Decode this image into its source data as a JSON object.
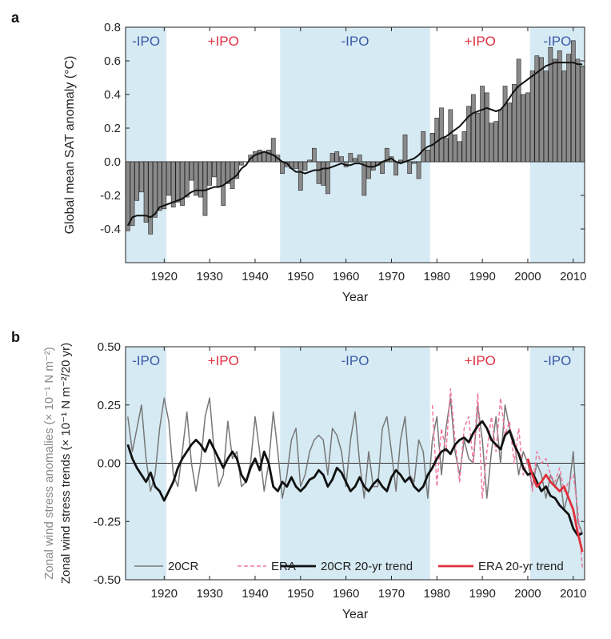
{
  "colors": {
    "neg_ipo_shade": "#d6eaf3",
    "neg_ipo_text": "#3a5aa8",
    "pos_ipo_text": "#e03040",
    "bar_fill": "#8a8a8a",
    "bar_edge": "#222222",
    "smooth_line": "#111111",
    "cr20_line": "#777777",
    "era_line": "#f07aa0",
    "cr20_trend": "#111111",
    "era_trend": "#e0303a"
  },
  "chart_data": [
    {
      "type": "bar",
      "panel_label": "a",
      "xlabel": "Year",
      "ylabel": "Global mean SAT anomaly (°C)",
      "xlim": [
        1911.5,
        2012.5
      ],
      "ylim": [
        -0.6,
        0.8
      ],
      "x_ticks": [
        1920,
        1930,
        1940,
        1950,
        1960,
        1970,
        1980,
        1990,
        2000,
        2010
      ],
      "y_ticks": [
        -0.4,
        -0.2,
        0.0,
        0.2,
        0.4,
        0.6,
        0.8
      ],
      "y_tick_labels": [
        "-0.4",
        "-0.2",
        "0.0",
        "0.2",
        "0.4",
        "0.6",
        "0.8"
      ],
      "ipo_phases": [
        {
          "label": "-IPO",
          "start": 1911.5,
          "end": 1920.5,
          "sign": "neg"
        },
        {
          "label": "+IPO",
          "start": 1920.5,
          "end": 1945.5,
          "sign": "pos"
        },
        {
          "label": "-IPO",
          "start": 1945.5,
          "end": 1978.5,
          "sign": "neg"
        },
        {
          "label": "+IPO",
          "start": 1978.5,
          "end": 2000.5,
          "sign": "pos"
        },
        {
          "label": "-IPO",
          "start": 2000.5,
          "end": 2012.5,
          "sign": "neg"
        }
      ],
      "years": [
        1912,
        1913,
        1914,
        1915,
        1916,
        1917,
        1918,
        1919,
        1920,
        1921,
        1922,
        1923,
        1924,
        1925,
        1926,
        1927,
        1928,
        1929,
        1930,
        1931,
        1932,
        1933,
        1934,
        1935,
        1936,
        1937,
        1938,
        1939,
        1940,
        1941,
        1942,
        1943,
        1944,
        1945,
        1946,
        1947,
        1948,
        1949,
        1950,
        1951,
        1952,
        1953,
        1954,
        1955,
        1956,
        1957,
        1958,
        1959,
        1960,
        1961,
        1962,
        1963,
        1964,
        1965,
        1966,
        1967,
        1968,
        1969,
        1970,
        1971,
        1972,
        1973,
        1974,
        1975,
        1976,
        1977,
        1978,
        1979,
        1980,
        1981,
        1982,
        1983,
        1984,
        1985,
        1986,
        1987,
        1988,
        1989,
        1990,
        1991,
        1992,
        1993,
        1994,
        1995,
        1996,
        1997,
        1998,
        1999,
        2000,
        2001,
        2002,
        2003,
        2004,
        2005,
        2006,
        2007,
        2008,
        2009,
        2010,
        2011,
        2012
      ],
      "values": [
        -0.41,
        -0.38,
        -0.23,
        -0.18,
        -0.36,
        -0.43,
        -0.33,
        -0.29,
        -0.28,
        -0.2,
        -0.27,
        -0.24,
        -0.26,
        -0.21,
        -0.11,
        -0.2,
        -0.21,
        -0.32,
        -0.14,
        -0.09,
        -0.15,
        -0.26,
        -0.13,
        -0.16,
        -0.1,
        -0.02,
        0.0,
        0.04,
        0.06,
        0.07,
        0.06,
        0.07,
        0.14,
        0.04,
        -0.07,
        -0.03,
        -0.04,
        -0.04,
        -0.17,
        -0.05,
        0.01,
        0.08,
        -0.13,
        -0.14,
        -0.19,
        0.05,
        0.06,
        0.03,
        -0.03,
        0.05,
        0.02,
        0.04,
        -0.2,
        -0.1,
        -0.05,
        -0.02,
        -0.07,
        0.08,
        0.03,
        -0.08,
        0.01,
        0.16,
        -0.07,
        -0.01,
        -0.1,
        0.18,
        0.07,
        0.17,
        0.26,
        0.32,
        0.14,
        0.31,
        0.16,
        0.12,
        0.18,
        0.33,
        0.4,
        0.29,
        0.45,
        0.41,
        0.23,
        0.24,
        0.31,
        0.45,
        0.35,
        0.46,
        0.61,
        0.4,
        0.41,
        0.54,
        0.63,
        0.62,
        0.54,
        0.68,
        0.61,
        0.66,
        0.54,
        0.64,
        0.72,
        0.61,
        0.57
      ],
      "smooth": [
        -0.38,
        -0.33,
        -0.32,
        -0.32,
        -0.32,
        -0.33,
        -0.31,
        -0.27,
        -0.26,
        -0.25,
        -0.24,
        -0.23,
        -0.22,
        -0.2,
        -0.18,
        -0.17,
        -0.17,
        -0.17,
        -0.16,
        -0.15,
        -0.15,
        -0.14,
        -0.12,
        -0.1,
        -0.08,
        -0.04,
        -0.02,
        0.02,
        0.04,
        0.05,
        0.06,
        0.05,
        0.04,
        0.02,
        0.0,
        -0.01,
        -0.04,
        -0.06,
        -0.06,
        -0.07,
        -0.06,
        -0.05,
        -0.05,
        -0.04,
        -0.04,
        -0.03,
        -0.02,
        -0.01,
        -0.02,
        -0.02,
        -0.01,
        -0.01,
        -0.02,
        -0.03,
        -0.03,
        -0.02,
        0.0,
        0.01,
        0.02,
        0.0,
        -0.01,
        0.0,
        0.01,
        0.02,
        0.04,
        0.07,
        0.09,
        0.1,
        0.12,
        0.14,
        0.15,
        0.17,
        0.19,
        0.21,
        0.24,
        0.27,
        0.29,
        0.3,
        0.31,
        0.32,
        0.31,
        0.3,
        0.31,
        0.34,
        0.38,
        0.42,
        0.45,
        0.47,
        0.49,
        0.51,
        0.53,
        0.55,
        0.57,
        0.58,
        0.59,
        0.59,
        0.59,
        0.59,
        0.59,
        0.58,
        0.58
      ]
    },
    {
      "type": "line",
      "panel_label": "b",
      "xlabel": "Year",
      "ylabel_line1": "Zonal wind stress anomalies (× 10⁻¹ N m⁻²)",
      "ylabel_line2": "Zonal wind stress trends (× 10⁻¹ N m⁻²/20 yr)",
      "xlim": [
        1911.5,
        2012.5
      ],
      "ylim": [
        -0.5,
        0.5
      ],
      "x_ticks": [
        1920,
        1930,
        1940,
        1950,
        1960,
        1970,
        1980,
        1990,
        2000,
        2010
      ],
      "y_ticks": [
        -0.5,
        -0.25,
        0.0,
        0.25,
        0.5
      ],
      "y_tick_labels": [
        "-0.50",
        "-0.25",
        "0.00",
        "0.25",
        "0.50"
      ],
      "ipo_phases": [
        {
          "label": "-IPO",
          "start": 1911.5,
          "end": 1920.5,
          "sign": "neg"
        },
        {
          "label": "+IPO",
          "start": 1920.5,
          "end": 1945.5,
          "sign": "pos"
        },
        {
          "label": "-IPO",
          "start": 1945.5,
          "end": 1978.5,
          "sign": "neg"
        },
        {
          "label": "+IPO",
          "start": 1978.5,
          "end": 2000.5,
          "sign": "pos"
        },
        {
          "label": "-IPO",
          "start": 2000.5,
          "end": 2012.5,
          "sign": "neg"
        }
      ],
      "legend": [
        "20CR",
        "ERA",
        "20CR 20-yr trend",
        "ERA 20-yr trend"
      ],
      "legend_position": "bottom",
      "series": [
        {
          "name": "20CR",
          "style": "thin-grey",
          "x": [
            1912,
            1913,
            1914,
            1915,
            1916,
            1917,
            1918,
            1919,
            1920,
            1921,
            1922,
            1923,
            1924,
            1925,
            1926,
            1927,
            1928,
            1929,
            1930,
            1931,
            1932,
            1933,
            1934,
            1935,
            1936,
            1937,
            1938,
            1939,
            1940,
            1941,
            1942,
            1943,
            1944,
            1945,
            1946,
            1947,
            1948,
            1949,
            1950,
            1951,
            1952,
            1953,
            1954,
            1955,
            1956,
            1957,
            1958,
            1959,
            1960,
            1961,
            1962,
            1963,
            1964,
            1965,
            1966,
            1967,
            1968,
            1969,
            1970,
            1971,
            1972,
            1973,
            1974,
            1975,
            1976,
            1977,
            1978,
            1979,
            1980,
            1981,
            1982,
            1983,
            1984,
            1985,
            1986,
            1987,
            1988,
            1989,
            1990,
            1991,
            1992,
            1993,
            1994,
            1995,
            1996,
            1997,
            1998,
            1999,
            2000,
            2001,
            2002,
            2003,
            2004,
            2005,
            2006,
            2007,
            2008,
            2009,
            2010,
            2011,
            2012
          ],
          "y": [
            0.2,
            0.05,
            0.15,
            0.25,
            0.02,
            -0.12,
            -0.05,
            0.15,
            0.28,
            0.18,
            -0.05,
            -0.1,
            0.05,
            0.22,
            0.0,
            -0.12,
            0.0,
            0.2,
            0.28,
            0.05,
            -0.1,
            -0.05,
            0.18,
            0.02,
            0.05,
            -0.1,
            -0.08,
            0.0,
            0.2,
            0.05,
            -0.12,
            0.0,
            0.22,
            0.05,
            -0.15,
            -0.05,
            0.1,
            0.15,
            -0.1,
            -0.05,
            0.05,
            0.1,
            0.12,
            0.1,
            -0.05,
            0.15,
            0.12,
            0.05,
            -0.1,
            0.1,
            0.22,
            0.0,
            -0.15,
            0.05,
            -0.1,
            -0.1,
            0.15,
            0.2,
            0.05,
            -0.12,
            0.1,
            0.2,
            -0.05,
            -0.08,
            0.1,
            0.05,
            -0.15,
            0.1,
            0.2,
            -0.05,
            0.15,
            0.28,
            0.05,
            -0.05,
            0.1,
            0.02,
            0.0,
            0.25,
            0.1,
            -0.15,
            0.05,
            0.2,
            0.0,
            0.25,
            0.15,
            0.1,
            -0.05,
            0.05,
            0.0,
            -0.1,
            0.0,
            -0.05,
            -0.15,
            -0.05,
            -0.1,
            -0.05,
            -0.2,
            -0.12,
            0.05,
            -0.25,
            -0.3
          ]
        },
        {
          "name": "ERA",
          "style": "dashed-pink",
          "x": [
            1979,
            1980,
            1981,
            1982,
            1983,
            1984,
            1985,
            1986,
            1987,
            1988,
            1989,
            1990,
            1991,
            1992,
            1993,
            1994,
            1995,
            1996,
            1997,
            1998,
            1999,
            2000,
            2001,
            2002,
            2003,
            2004,
            2005,
            2006,
            2007,
            2008,
            2009,
            2010,
            2011,
            2012
          ],
          "y": [
            0.25,
            -0.1,
            0.15,
            0.05,
            0.32,
            0.1,
            -0.08,
            0.15,
            0.2,
            0.0,
            0.3,
            -0.15,
            0.05,
            0.2,
            0.05,
            0.28,
            0.12,
            0.18,
            0.0,
            0.15,
            -0.05,
            0.02,
            -0.12,
            0.05,
            0.0,
            0.02,
            -0.05,
            -0.08,
            -0.02,
            -0.12,
            -0.08,
            -0.05,
            -0.2,
            -0.45
          ]
        },
        {
          "name": "20CR 20-yr trend",
          "style": "thick-black",
          "x": [
            1912,
            1913,
            1914,
            1915,
            1916,
            1917,
            1918,
            1919,
            1920,
            1921,
            1922,
            1923,
            1924,
            1925,
            1926,
            1927,
            1928,
            1929,
            1930,
            1931,
            1932,
            1933,
            1934,
            1935,
            1936,
            1937,
            1938,
            1939,
            1940,
            1941,
            1942,
            1943,
            1944,
            1945,
            1946,
            1947,
            1948,
            1949,
            1950,
            1951,
            1952,
            1953,
            1954,
            1955,
            1956,
            1957,
            1958,
            1959,
            1960,
            1961,
            1962,
            1963,
            1964,
            1965,
            1966,
            1967,
            1968,
            1969,
            1970,
            1971,
            1972,
            1973,
            1974,
            1975,
            1976,
            1977,
            1978,
            1979,
            1980,
            1981,
            1982,
            1983,
            1984,
            1985,
            1986,
            1987,
            1988,
            1989,
            1990,
            1991,
            1992,
            1993,
            1994,
            1995,
            1996,
            1997,
            1998,
            1999,
            2000,
            2001,
            2002,
            2003,
            2004,
            2005,
            2006,
            2007,
            2008,
            2009,
            2010,
            2011,
            2012
          ],
          "y": [
            0.08,
            0.02,
            -0.02,
            -0.05,
            -0.08,
            -0.04,
            -0.1,
            -0.12,
            -0.16,
            -0.12,
            -0.08,
            -0.02,
            0.02,
            0.05,
            0.08,
            0.1,
            0.08,
            0.05,
            0.1,
            0.06,
            0.02,
            -0.02,
            0.02,
            0.05,
            0.02,
            -0.05,
            -0.08,
            -0.02,
            0.02,
            -0.03,
            0.05,
            0.0,
            -0.1,
            -0.12,
            -0.08,
            -0.1,
            -0.06,
            -0.1,
            -0.12,
            -0.1,
            -0.07,
            -0.06,
            -0.03,
            -0.05,
            -0.1,
            -0.07,
            -0.02,
            -0.04,
            -0.08,
            -0.12,
            -0.1,
            -0.06,
            -0.1,
            -0.12,
            -0.09,
            -0.07,
            -0.1,
            -0.12,
            -0.06,
            -0.03,
            -0.05,
            -0.08,
            -0.06,
            -0.1,
            -0.12,
            -0.1,
            -0.05,
            -0.02,
            0.02,
            0.05,
            0.06,
            0.04,
            0.08,
            0.1,
            0.11,
            0.09,
            0.13,
            0.16,
            0.18,
            0.15,
            0.1,
            0.08,
            0.06,
            0.12,
            0.14,
            0.08,
            0.04,
            -0.02,
            -0.05,
            -0.04,
            -0.08,
            -0.12,
            -0.1,
            -0.14,
            -0.15,
            -0.18,
            -0.2,
            -0.22,
            -0.28,
            -0.31,
            -0.3
          ]
        },
        {
          "name": "ERA 20-yr trend",
          "style": "thick-red",
          "x": [
            2000,
            2001,
            2002,
            2003,
            2004,
            2005,
            2006,
            2007,
            2008,
            2009,
            2010,
            2011,
            2012
          ],
          "y": [
            0.02,
            -0.05,
            -0.1,
            -0.08,
            -0.05,
            -0.08,
            -0.1,
            -0.12,
            -0.1,
            -0.15,
            -0.2,
            -0.3,
            -0.38
          ]
        }
      ]
    }
  ]
}
